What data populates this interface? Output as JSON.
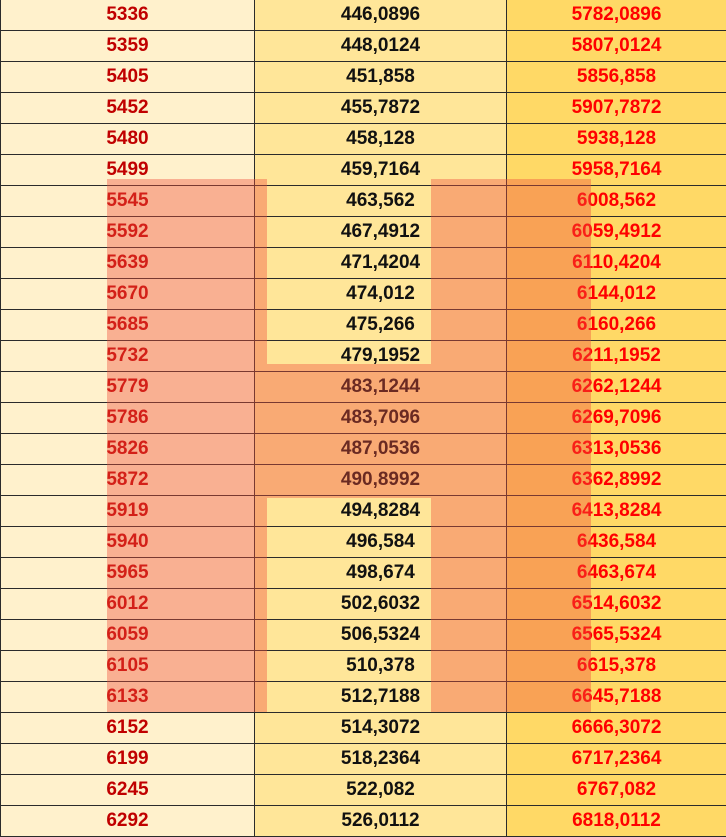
{
  "sheet": {
    "rows": [
      [
        "5336",
        "446,0896",
        "5782,0896"
      ],
      [
        "5359",
        "448,0124",
        "5807,0124"
      ],
      [
        "5405",
        "451,858",
        "5856,858"
      ],
      [
        "5452",
        "455,7872",
        "5907,7872"
      ],
      [
        "5480",
        "458,128",
        "5938,128"
      ],
      [
        "5499",
        "459,7164",
        "5958,7164"
      ],
      [
        "5545",
        "463,562",
        "6008,562"
      ],
      [
        "5592",
        "467,4912",
        "6059,4912"
      ],
      [
        "5639",
        "471,4204",
        "6110,4204"
      ],
      [
        "5670",
        "474,012",
        "6144,012"
      ],
      [
        "5685",
        "475,266",
        "6160,266"
      ],
      [
        "5732",
        "479,1952",
        "6211,1952"
      ],
      [
        "5779",
        "483,1244",
        "6262,1244"
      ],
      [
        "5786",
        "483,7096",
        "6269,7096"
      ],
      [
        "5826",
        "487,0536",
        "6313,0536"
      ],
      [
        "5872",
        "490,8992",
        "6362,8992"
      ],
      [
        "5919",
        "494,8284",
        "6413,8284"
      ],
      [
        "5940",
        "496,584",
        "6436,584"
      ],
      [
        "5965",
        "498,674",
        "6463,674"
      ],
      [
        "6012",
        "502,6032",
        "6514,6032"
      ],
      [
        "6059",
        "506,5324",
        "6565,5324"
      ],
      [
        "6105",
        "510,378",
        "6615,378"
      ],
      [
        "6133",
        "512,7188",
        "6645,7188"
      ],
      [
        "6152",
        "514,3072",
        "6666,3072"
      ],
      [
        "6199",
        "518,2364",
        "6717,2364"
      ],
      [
        "6245",
        "522,082",
        "6767,082"
      ],
      [
        "6292",
        "526,0112",
        "6818,0112"
      ]
    ]
  },
  "colors": {
    "col1_bg": "#fff1cc",
    "col2_bg": "#ffe699",
    "col3_bg": "#ffd966",
    "col1_text": "#c00000",
    "col2_text": "#111111",
    "col3_text": "#ff0000",
    "watermark": "#f0503c"
  },
  "watermark": {
    "shape": "letter-H-watermark"
  }
}
